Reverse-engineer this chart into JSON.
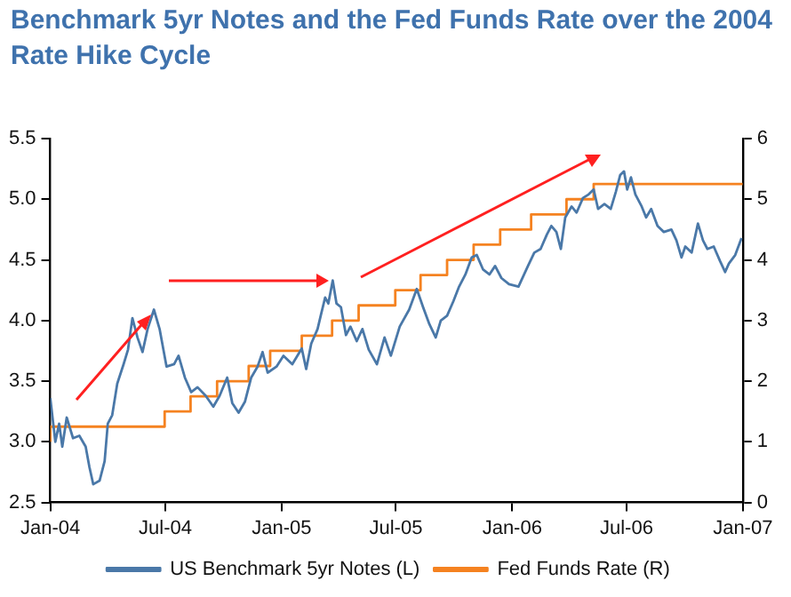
{
  "chart_data": {
    "type": "line",
    "title": "Benchmark 5yr Notes and the Fed Funds Rate over the 2004 Rate Hike Cycle",
    "xlim": [
      "2004-01-01",
      "2007-01-01"
    ],
    "xticks": [
      {
        "value": "2004-01-01",
        "label": "Jan-04"
      },
      {
        "value": "2004-07-01",
        "label": "Jul-04"
      },
      {
        "value": "2005-01-01",
        "label": "Jan-05"
      },
      {
        "value": "2005-07-01",
        "label": "Jul-05"
      },
      {
        "value": "2006-01-01",
        "label": "Jan-06"
      },
      {
        "value": "2006-07-01",
        "label": "Jul-06"
      },
      {
        "value": "2007-01-01",
        "label": "Jan-07"
      }
    ],
    "ylim": [
      2.5,
      5.5
    ],
    "yticks": [
      2.5,
      {
        "value": 3,
        "label": "3.0"
      },
      3.5,
      {
        "value": 4,
        "label": "4.0"
      },
      4.5,
      {
        "value": 5,
        "label": "5.0"
      },
      5.5
    ],
    "y2lim": [
      0,
      6
    ],
    "y2ticks": [
      0,
      1,
      2,
      3,
      4,
      5,
      6
    ],
    "grid": false,
    "legend": "bottom",
    "marker": "none",
    "line_style": "solid",
    "series": [
      {
        "name": "US Benchmark 5yr Notes (L)",
        "color": "#4a78a8",
        "type": "line",
        "x": [
          "2004-01-01",
          "2004-01-09",
          "2004-01-15",
          "2004-01-20",
          "2004-01-27",
          "2004-02-06",
          "2004-02-16",
          "2004-02-26",
          "2004-03-03",
          "2004-03-09",
          "2004-03-19",
          "2004-03-27",
          "2004-04-01",
          "2004-04-08",
          "2004-04-16",
          "2004-04-26",
          "2004-05-03",
          "2004-05-10",
          "2004-05-18",
          "2004-05-26",
          "2004-06-03",
          "2004-06-13",
          "2004-06-22",
          "2004-07-03",
          "2004-07-15",
          "2004-07-22",
          "2004-08-01",
          "2004-08-11",
          "2004-08-21",
          "2004-09-03",
          "2004-09-15",
          "2004-09-25",
          "2004-10-07",
          "2004-10-15",
          "2004-10-25",
          "2004-11-04",
          "2004-11-14",
          "2004-11-24",
          "2004-12-02",
          "2004-12-10",
          "2004-12-24",
          "2005-01-04",
          "2005-01-18",
          "2005-02-02",
          "2005-02-09",
          "2005-02-17",
          "2005-02-27",
          "2005-03-04",
          "2005-03-11",
          "2005-03-16",
          "2005-03-23",
          "2005-03-29",
          "2005-04-05",
          "2005-04-13",
          "2005-04-20",
          "2005-04-30",
          "2005-05-09",
          "2005-05-19",
          "2005-06-01",
          "2005-06-13",
          "2005-06-23",
          "2005-07-07",
          "2005-07-22",
          "2005-08-03",
          "2005-08-13",
          "2005-08-23",
          "2005-09-02",
          "2005-09-10",
          "2005-09-20",
          "2005-09-30",
          "2005-10-09",
          "2005-10-19",
          "2005-10-29",
          "2005-11-06",
          "2005-11-16",
          "2005-11-26",
          "2005-12-05",
          "2005-12-15",
          "2005-12-27",
          "2006-01-11",
          "2006-01-26",
          "2006-02-05",
          "2006-02-15",
          "2006-02-25",
          "2006-03-04",
          "2006-03-12",
          "2006-03-19",
          "2006-03-26",
          "2006-04-05",
          "2006-04-13",
          "2006-04-23",
          "2006-05-02",
          "2006-05-10",
          "2006-05-17",
          "2006-05-27",
          "2006-06-06",
          "2006-06-14",
          "2006-06-21",
          "2006-06-27",
          "2006-07-02",
          "2006-07-08",
          "2006-07-15",
          "2006-07-25",
          "2006-08-01",
          "2006-08-09",
          "2006-08-19",
          "2006-08-29",
          "2006-09-10",
          "2006-09-18",
          "2006-09-26",
          "2006-10-02",
          "2006-10-12",
          "2006-10-22",
          "2006-10-30",
          "2006-11-06",
          "2006-11-16",
          "2006-11-26",
          "2006-12-04",
          "2006-12-10",
          "2006-12-20",
          "2006-12-30"
        ],
        "values": [
          3.36,
          3.0,
          3.15,
          2.96,
          3.2,
          3.03,
          3.05,
          2.96,
          2.79,
          2.65,
          2.68,
          2.84,
          3.15,
          3.22,
          3.48,
          3.64,
          3.76,
          4.02,
          3.86,
          3.74,
          3.93,
          4.09,
          3.93,
          3.62,
          3.64,
          3.71,
          3.53,
          3.41,
          3.45,
          3.38,
          3.29,
          3.38,
          3.53,
          3.32,
          3.24,
          3.33,
          3.53,
          3.62,
          3.74,
          3.57,
          3.62,
          3.71,
          3.64,
          3.77,
          3.6,
          3.81,
          3.93,
          4.04,
          4.19,
          4.14,
          4.33,
          4.14,
          4.11,
          3.88,
          3.95,
          3.83,
          3.93,
          3.76,
          3.64,
          3.86,
          3.71,
          3.95,
          4.09,
          4.26,
          4.11,
          3.97,
          3.86,
          4.0,
          4.04,
          4.16,
          4.28,
          4.38,
          4.52,
          4.54,
          4.42,
          4.38,
          4.45,
          4.35,
          4.3,
          4.28,
          4.45,
          4.56,
          4.59,
          4.71,
          4.78,
          4.73,
          4.59,
          4.85,
          4.94,
          4.89,
          5.01,
          5.04,
          5.08,
          4.92,
          4.96,
          4.92,
          5.06,
          5.2,
          5.23,
          5.08,
          5.18,
          5.04,
          4.94,
          4.85,
          4.92,
          4.78,
          4.73,
          4.75,
          4.66,
          4.52,
          4.61,
          4.56,
          4.8,
          4.66,
          4.59,
          4.61,
          4.49,
          4.4,
          4.47,
          4.54,
          4.68
        ]
      },
      {
        "name": "Fed Funds Rate (R)",
        "color": "#f58220",
        "type": "step",
        "axis": "y2",
        "x": [
          "2004-01-01",
          "2004-06-30",
          "2004-08-10",
          "2004-09-21",
          "2004-11-10",
          "2004-12-14",
          "2005-02-02",
          "2005-03-22",
          "2005-05-03",
          "2005-06-30",
          "2005-08-09",
          "2005-09-20",
          "2005-11-01",
          "2005-12-13",
          "2006-01-31",
          "2006-03-28",
          "2006-05-10",
          "2006-06-29",
          "2007-01-01"
        ],
        "values": [
          1.0,
          1.25,
          1.5,
          1.75,
          2.0,
          2.25,
          2.5,
          2.75,
          3.0,
          3.25,
          3.5,
          3.75,
          4.0,
          4.25,
          4.5,
          4.75,
          5.0,
          5.25,
          5.25
        ]
      }
    ]
  }
}
